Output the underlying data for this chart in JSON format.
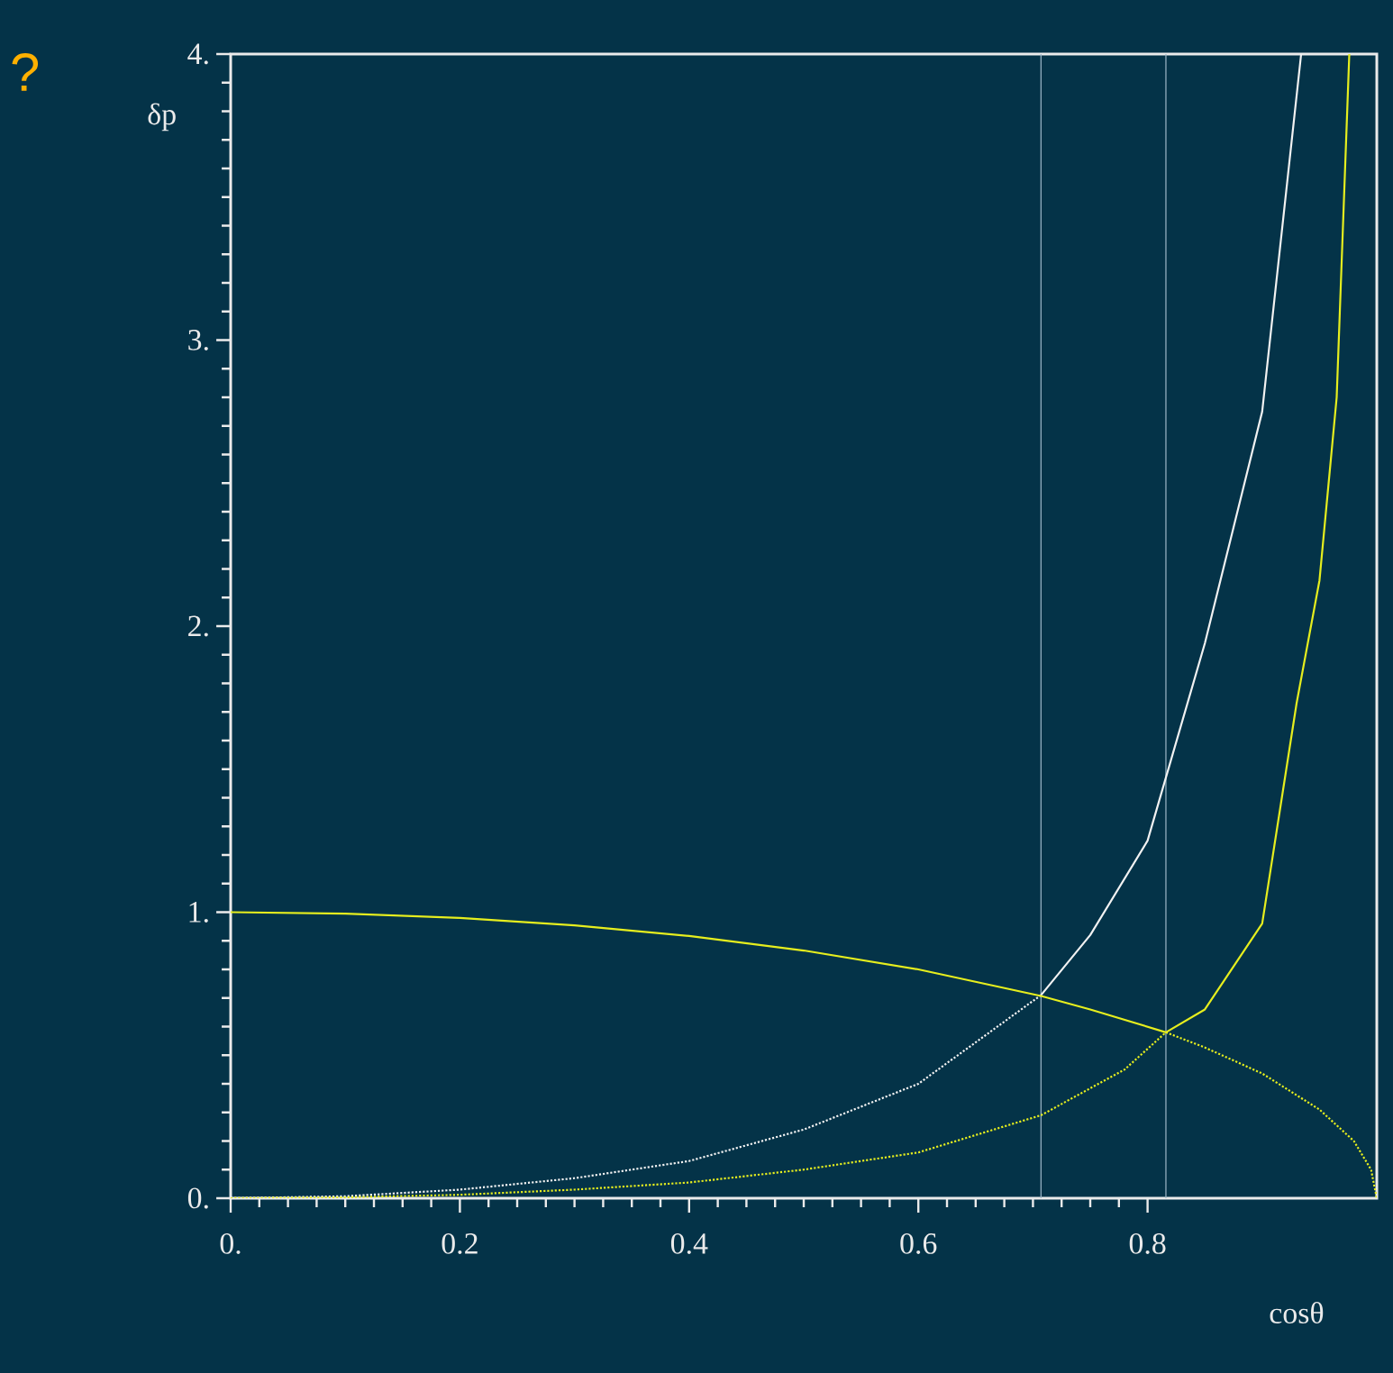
{
  "chart_data": {
    "type": "line",
    "xlabel": "cosθ",
    "ylabel": "δp",
    "annotations": [
      "?"
    ],
    "xlim": [
      0,
      1
    ],
    "ylim": [
      0,
      4
    ],
    "xticks": [
      {
        "value": 0,
        "label": "0."
      },
      0.2,
      0.4,
      0.6,
      0.8
    ],
    "yticks": [
      {
        "value": 0,
        "label": "0."
      },
      {
        "value": 1,
        "label": "1."
      },
      {
        "value": 2,
        "label": "2."
      },
      {
        "value": 3,
        "label": "3."
      },
      {
        "value": 4,
        "label": "4."
      }
    ],
    "marker": "none",
    "ref_lines": [
      {
        "axis": "x",
        "value": 0.707,
        "color": "#9fb9c9"
      },
      {
        "axis": "x",
        "value": 0.816,
        "color": "#9fb9c9"
      }
    ],
    "series": [
      {
        "color": "#f2f2f2",
        "line_style": "dotted",
        "x": [
          0,
          0.1,
          0.2,
          0.3,
          0.4,
          0.5,
          0.6,
          0.707
        ],
        "values": [
          0,
          0.007,
          0.03,
          0.07,
          0.13,
          0.24,
          0.4,
          0.71
        ]
      },
      {
        "color": "#f2f2f2",
        "line_style": "solid",
        "x": [
          0.707,
          0.75,
          0.8,
          0.85,
          0.9,
          0.934
        ],
        "values": [
          0.71,
          0.92,
          1.25,
          1.94,
          2.75,
          4
        ]
      },
      {
        "color": "#e6ee1e",
        "line_style": "dotted",
        "x": [
          0,
          0.1,
          0.2,
          0.3,
          0.4,
          0.5,
          0.6,
          0.707,
          0.78,
          0.816
        ],
        "values": [
          0,
          0.003,
          0.012,
          0.03,
          0.055,
          0.1,
          0.16,
          0.29,
          0.45,
          0.58
        ]
      },
      {
        "color": "#e6ee1e",
        "line_style": "solid",
        "x": [
          0.816,
          0.85,
          0.9,
          0.93,
          0.95,
          0.965,
          0.976
        ],
        "values": [
          0.58,
          0.66,
          0.96,
          1.73,
          2.16,
          2.8,
          4
        ]
      },
      {
        "color": "#e6ee1e",
        "line_style": "solid",
        "x": [
          0,
          0.1,
          0.2,
          0.3,
          0.4,
          0.5,
          0.6,
          0.707,
          0.75,
          0.816
        ],
        "values": [
          1,
          0.995,
          0.98,
          0.954,
          0.917,
          0.866,
          0.8,
          0.707,
          0.66,
          0.58
        ]
      },
      {
        "color": "#e6ee1e",
        "line_style": "dotted",
        "x": [
          0.816,
          0.85,
          0.9,
          0.95,
          0.98,
          0.995,
          1
        ],
        "values": [
          0.58,
          0.527,
          0.436,
          0.31,
          0.2,
          0.1,
          0
        ]
      }
    ]
  }
}
